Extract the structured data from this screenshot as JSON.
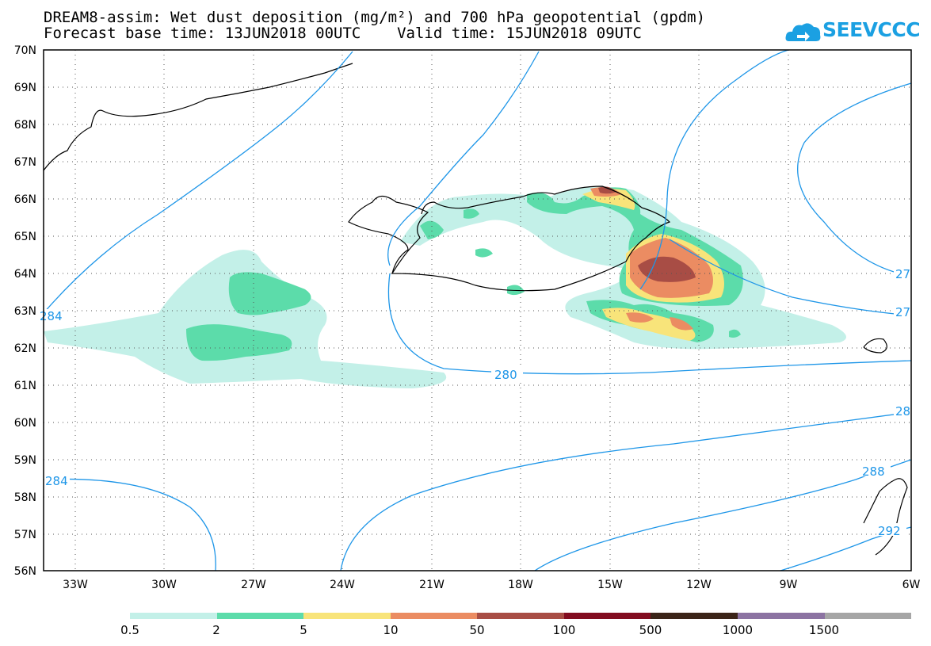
{
  "title": {
    "line1": "DREAM8-assim: Wet dust deposition (mg/m²) and 700 hPa geopotential (gpdm)",
    "line2": "Forecast base time: 13JUN2018 00UTC    Valid time: 15JUN2018 09UTC"
  },
  "logo": {
    "text": "SEEVCCC",
    "icon": "cloud-icon",
    "color": "#1ba0e2"
  },
  "map": {
    "lat_labels": [
      "70N",
      "69N",
      "68N",
      "67N",
      "66N",
      "65N",
      "64N",
      "63N",
      "62N",
      "61N",
      "60N",
      "59N",
      "58N",
      "57N",
      "56N"
    ],
    "lon_labels": [
      "33W",
      "30W",
      "27W",
      "24W",
      "21W",
      "18W",
      "15W",
      "12W",
      "9W",
      "6W"
    ],
    "contour_labels": [
      "280",
      "284",
      "288",
      "292",
      "27",
      "27",
      "28",
      "284"
    ],
    "contour_color": "#1e96e8"
  },
  "legend": {
    "colors": [
      "#c3f0e8",
      "#5cdcaa",
      "#f8e47a",
      "#eb8c62",
      "#a84d45",
      "#820c20",
      "#3b2418",
      "#8c73a2",
      "#a6a6a6"
    ],
    "labels": [
      "0.5",
      "2",
      "5",
      "10",
      "50",
      "100",
      "500",
      "1000",
      "1500"
    ]
  }
}
